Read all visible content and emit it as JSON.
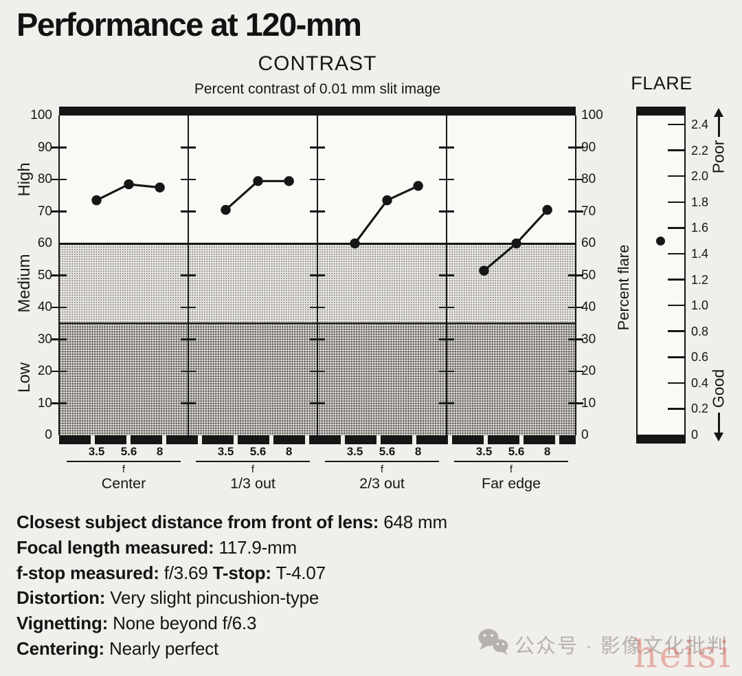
{
  "page": {
    "title": "Performance at 120-mm"
  },
  "colors": {
    "ink": "#161616",
    "paper": "#f1efeb",
    "watermark_gray": "#b5b2ae",
    "watermark_red": "#d6584e"
  },
  "chart_data": [
    {
      "type": "line",
      "title": "CONTRAST",
      "subtitle": "Percent contrast of 0.01 mm slit image",
      "xlabel": "f",
      "x_labels": [
        "3.5",
        "5.6",
        "8"
      ],
      "x": [
        3.5,
        5.6,
        8
      ],
      "ylim": [
        0,
        100
      ],
      "yticks": [
        100,
        90,
        80,
        70,
        60,
        50,
        40,
        30,
        20,
        10,
        0
      ],
      "bands": [
        {
          "label": "High",
          "range": [
            60,
            100
          ]
        },
        {
          "label": "Medium",
          "range": [
            35,
            60
          ]
        },
        {
          "label": "Low",
          "range": [
            0,
            35
          ]
        }
      ],
      "panels": [
        {
          "label": "Center",
          "values": [
            73.5,
            78.5,
            77.5
          ]
        },
        {
          "label": "1/3 out",
          "values": [
            70.5,
            79.5,
            79.5
          ]
        },
        {
          "label": "2/3 out",
          "values": [
            60,
            73.5,
            78
          ]
        },
        {
          "label": "Far edge",
          "values": [
            51.5,
            60,
            70.5
          ]
        }
      ]
    },
    {
      "type": "scatter",
      "title": "FLARE",
      "ylabel": "Percent flare",
      "ylim": [
        0,
        2.5
      ],
      "yticks": [
        "2.4",
        "2.2",
        "2.0",
        "1.8",
        "1.6",
        "1.4",
        "1.2",
        "1.0",
        "0.8",
        "0.6",
        "0.4",
        "0.2",
        "0"
      ],
      "value": 1.5,
      "annotations": {
        "top": "Poor",
        "bottom": "Good"
      }
    }
  ],
  "specs": {
    "lines": [
      [
        {
          "t": "Closest subject distance from front of lens:",
          "b": true
        },
        {
          "t": " 648 mm",
          "b": false
        }
      ],
      [
        {
          "t": "Focal length measured:",
          "b": true
        },
        {
          "t": " 117.9-mm",
          "b": false
        }
      ],
      [
        {
          "t": "f-stop measured:",
          "b": true
        },
        {
          "t": " f/3.69 ",
          "b": false
        },
        {
          "t": "T-stop:",
          "b": true
        },
        {
          "t": " T-4.07",
          "b": false
        }
      ],
      [
        {
          "t": "Distortion:",
          "b": true
        },
        {
          "t": " Very slight pincushion-type",
          "b": false
        }
      ],
      [
        {
          "t": "Vignetting:",
          "b": true
        },
        {
          "t": " None beyond f/6.3",
          "b": false
        }
      ],
      [
        {
          "t": "Centering:",
          "b": true
        },
        {
          "t": " Nearly perfect",
          "b": false
        }
      ]
    ]
  },
  "watermark": {
    "icon": "wechat-icon",
    "text": "公众号 · 影像文化批判",
    "overlay": "heisi"
  }
}
